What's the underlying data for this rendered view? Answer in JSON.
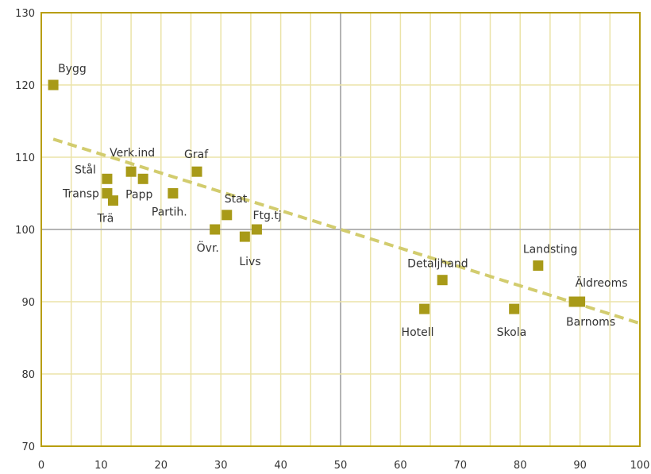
{
  "chart_data": {
    "type": "scatter",
    "title": "",
    "xlabel": "",
    "ylabel": "",
    "xlim": [
      0,
      100
    ],
    "ylim": [
      70,
      130
    ],
    "x_ticks": [
      0,
      10,
      20,
      30,
      40,
      50,
      60,
      70,
      80,
      90,
      100
    ],
    "y_ticks": [
      70,
      80,
      90,
      100,
      110,
      120,
      130
    ],
    "grid": true,
    "points": [
      {
        "label": "Bygg",
        "x": 2,
        "y": 120
      },
      {
        "label": "Stål",
        "x": 11,
        "y": 107
      },
      {
        "label": "Transp",
        "x": 11,
        "y": 105
      },
      {
        "label": "Trä",
        "x": 12,
        "y": 104
      },
      {
        "label": "Verk.ind",
        "x": 15,
        "y": 108
      },
      {
        "label": "Papp",
        "x": 17,
        "y": 107
      },
      {
        "label": "Partih.",
        "x": 22,
        "y": 105
      },
      {
        "label": "Graf",
        "x": 26,
        "y": 108
      },
      {
        "label": "Övr.",
        "x": 29,
        "y": 100
      },
      {
        "label": "Stat",
        "x": 31,
        "y": 102
      },
      {
        "label": "Livs",
        "x": 34,
        "y": 99
      },
      {
        "label": "Ftg.tj",
        "x": 36,
        "y": 100
      },
      {
        "label": "Hotell",
        "x": 64,
        "y": 89
      },
      {
        "label": "Detaljhand",
        "x": 67,
        "y": 93
      },
      {
        "label": "Skola",
        "x": 79,
        "y": 89
      },
      {
        "label": "Landsting",
        "x": 83,
        "y": 95
      },
      {
        "label": "Barnoms",
        "x": 89,
        "y": 90
      },
      {
        "label": "Äldreoms",
        "x": 90,
        "y": 90
      }
    ],
    "trendline": {
      "style": "dashed",
      "from": [
        2,
        112.5
      ],
      "to": [
        100,
        87
      ]
    },
    "colors": {
      "marker": "#a89a18",
      "trendline": "#d2cc6e",
      "grid_minor": "#ebe3a8",
      "grid_major": "#b4b4b4",
      "frame": "#b89e0f"
    }
  }
}
